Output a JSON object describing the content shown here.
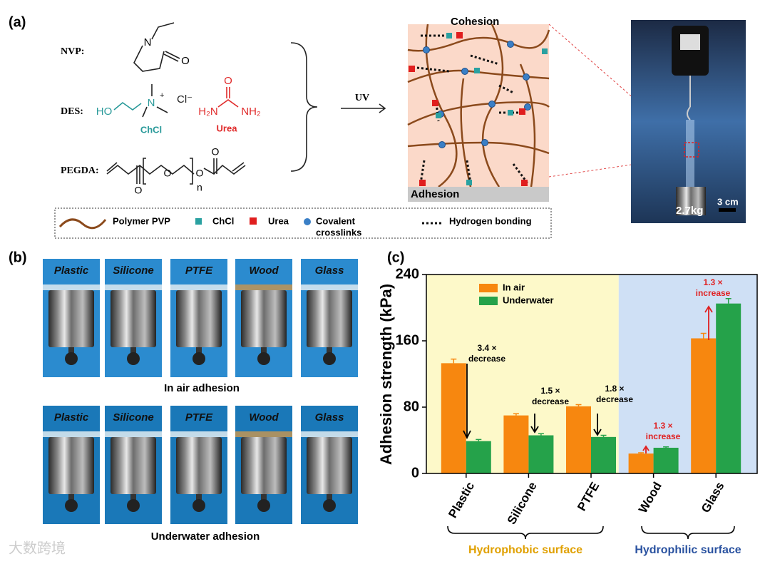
{
  "panel_a": {
    "label": "(a)",
    "rows": [
      "NVP:",
      "DES:",
      "PEGDA:"
    ],
    "atoms": {
      "nvp_n": "N",
      "nvp_o": "O",
      "ho": "HO",
      "n": "N",
      "plus": "+",
      "cl": "Cl⁻",
      "h2n": "H₂N",
      "nh2": "NH₂",
      "urea_o": "O",
      "peg_o1": "O",
      "peg_o2": "O",
      "peg_o3": "O",
      "peg_o4": "O",
      "sub_n": "n"
    },
    "chcl": "ChCl",
    "urea": "Urea",
    "uv": "UV",
    "cohesion": "Cohesion",
    "adhesion": "Adhesion",
    "weight": "2.7kg",
    "scale": "3 cm",
    "legend": {
      "pvp": "Polymer PVP",
      "chcl": "ChCl",
      "urea": "Urea",
      "crosslinks": [
        "Covalent",
        "crosslinks"
      ],
      "hbond": "Hydrogen bonding"
    }
  },
  "panel_b": {
    "label": "(b)",
    "materials": [
      "Plastic",
      "Silicone",
      "PTFE",
      "Wood",
      "Glass"
    ],
    "captions": [
      "In air adhesion",
      "Underwater adhesion"
    ]
  },
  "chart_data": {
    "type": "bar",
    "label": "(c)",
    "y_label": "Adhesion strength (kPa)",
    "categories": [
      "Plastic",
      "Silicone",
      "PTFE",
      "Wood",
      "Glass"
    ],
    "series": [
      {
        "name": "In air",
        "color": "#f7870f",
        "values": [
          133,
          70,
          81,
          24,
          163
        ],
        "errors": [
          5,
          2,
          2,
          1,
          6
        ]
      },
      {
        "name": "Underwater",
        "color": "#25a24a",
        "values": [
          39,
          46,
          44,
          31,
          205
        ],
        "errors": [
          2,
          2,
          2,
          1,
          6
        ]
      }
    ],
    "ylim": [
      0,
      240
    ],
    "yticks": [
      0,
      80,
      160,
      240
    ],
    "groups": [
      {
        "name": "Hydrophobic surface",
        "color": "#e0a000",
        "background": "#fdf9c9"
      },
      {
        "name": "Hydrophilic surface",
        "color": "#2a52a0",
        "background": "#cfe0f5"
      }
    ],
    "annotations": [
      [
        "3.4 ×",
        "decrease"
      ],
      [
        "1.5 ×",
        "decrease"
      ],
      [
        "1.8 ×",
        "decrease"
      ],
      [
        "1.3 ×",
        "increase"
      ],
      [
        "1.3 ×",
        "increase"
      ]
    ]
  },
  "watermark": "大数跨境"
}
